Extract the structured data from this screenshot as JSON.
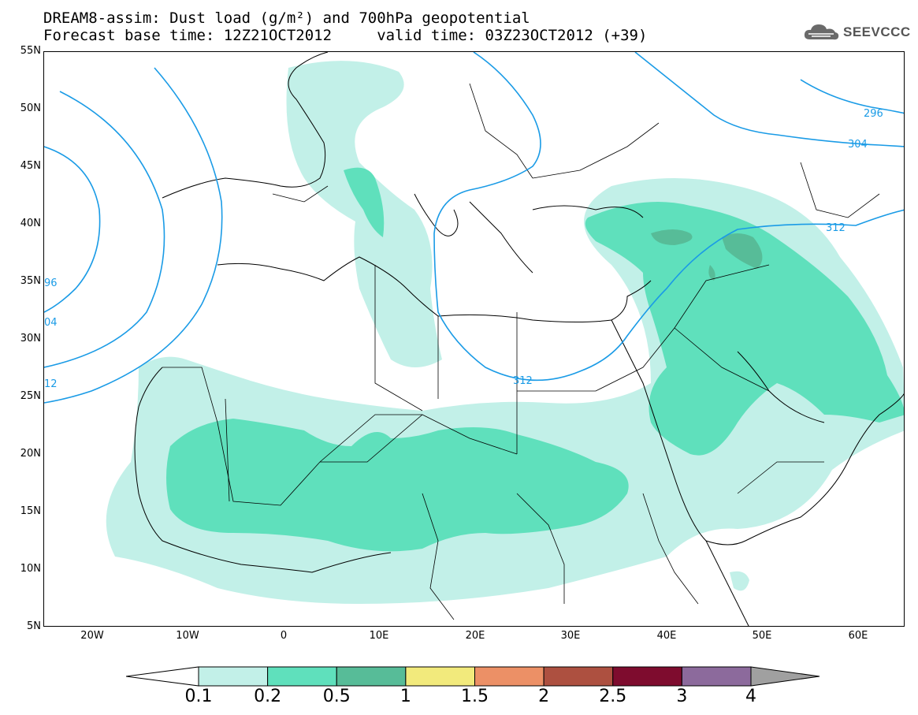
{
  "header": {
    "line1": "DREAM8-assim: Dust load (g/m²) and 700hPa geopotential",
    "line2": "Forecast base time: 12Z21OCT2012     valid time: 03Z23OCT2012 (+39)"
  },
  "logo": {
    "text": "SEEVCCC",
    "icon": "cloud-logo-icon"
  },
  "axes": {
    "lat_labels": [
      "55N",
      "50N",
      "45N",
      "40N",
      "35N",
      "30N",
      "25N",
      "20N",
      "15N",
      "10N",
      "5N"
    ],
    "lon_labels": [
      "20W",
      "10W",
      "0",
      "10E",
      "20E",
      "30E",
      "40E",
      "50E",
      "60E"
    ]
  },
  "contours": {
    "color": "#1a9be6",
    "labels": [
      "296",
      "304",
      "312",
      "312",
      "96",
      "04",
      "12"
    ]
  },
  "colorbar": {
    "labels": [
      "0.1",
      "0.2",
      "0.5",
      "1",
      "1.5",
      "2",
      "2.5",
      "3",
      "4"
    ],
    "colors": [
      "#c2f0e8",
      "#5fe0bc",
      "#57bc98",
      "#f2ea7c",
      "#ec9066",
      "#ad5040",
      "#7e0c2e",
      "#8c6a9c"
    ],
    "over_color": "#a0a0a0"
  },
  "dust_colors": {
    "low": "#c2f0e8",
    "mid": "#5fe0bc",
    "high": "#57bc98"
  }
}
